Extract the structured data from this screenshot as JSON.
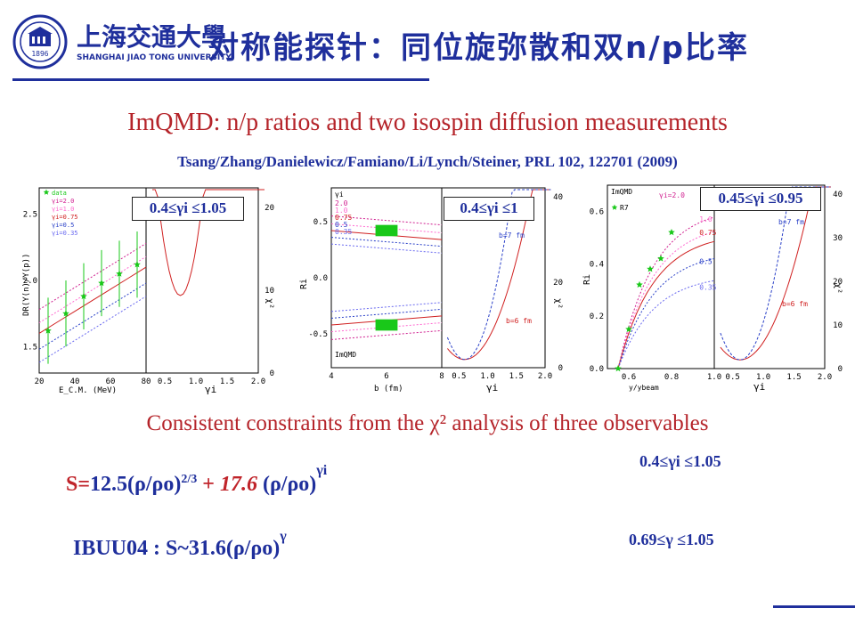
{
  "header": {
    "logo_cn": "上海交通大學",
    "logo_en": "SHANGHAI JIAO TONG UNIVERSITY",
    "seal_year": "1896",
    "title_cn": "对称能探针：同位旋弥散和双n/p比率"
  },
  "subtitle": "ImQMD: n/p ratios and two isospin diffusion measurements",
  "citation": "Tsang/Zhang/Danielewicz/Famiano/Li/Lynch/Steiner, PRL 102, 122701 (2009)",
  "colors": {
    "title_blue": "#1f2f9c",
    "accent_red": "#b5242a",
    "marker_green": "#19c819"
  },
  "panels": {
    "p1": {
      "range_label": "0.4≤γi ≤1.05",
      "legend": [
        "data",
        "γi=2.0",
        "γi=1.0",
        "γi=0.75",
        "γi=0.5",
        "γi=0.35"
      ],
      "ylabel": "DR(Y(n)/Y(p))",
      "xlabel": "E_C.M. (MeV)",
      "xticks": [
        "20",
        "40",
        "60",
        "80"
      ],
      "yticks": [
        "1.5",
        "2.0",
        "2.5"
      ],
      "xlabel2": "γi",
      "xticks2": [
        "0.5",
        "1.0",
        "1.5",
        "2.0"
      ],
      "chi_label": "χ²",
      "chi_ticks": [
        "0",
        "10",
        "20"
      ]
    },
    "p2": {
      "range_label": "0.4≤γi ≤1",
      "legend_head": "γi",
      "legend": [
        "2.0",
        "1.0",
        "0.75",
        "0.5",
        "0.35"
      ],
      "ylabel": "Ri",
      "xlabel": "b (fm)",
      "xticks": [
        "4",
        "6",
        "8"
      ],
      "yticks": [
        "-0.5",
        "0.0",
        "0.5"
      ],
      "model": "ImQMD",
      "xlabel2": "γi",
      "xticks2": [
        "0.5",
        "1.0",
        "1.5",
        "2.0"
      ],
      "chi_label": "χ²",
      "chi_ticks": [
        "0",
        "20",
        "40"
      ],
      "b7": "b=7 fm",
      "b6": "b=6 fm"
    },
    "p3": {
      "range_label": "0.45≤γi ≤0.95",
      "model": "ImQMD",
      "legend_head": "γi=2.0",
      "legend_r": "R7",
      "curve_labels": [
        "1.0",
        "0.75",
        "0.5",
        "0.35"
      ],
      "ylabel": "Ri",
      "xlabel": "y/ybeam",
      "xticks": [
        "0.6",
        "0.8",
        "1.0"
      ],
      "yticks": [
        "0.0",
        "0.2",
        "0.4",
        "0.6"
      ],
      "xlabel2": "γi",
      "xticks2": [
        "0.5",
        "1.0",
        "1.5",
        "2.0"
      ],
      "chi_label": "χ²",
      "chi_ticks": [
        "0",
        "10",
        "20",
        "30",
        "40"
      ],
      "b7": "b=7 fm",
      "b6": "b=6 fm"
    }
  },
  "consistent_text": "Consistent constraints from the χ² analysis of three observables",
  "formula1": {
    "S": "S=",
    "a": "12.5(ρ/ρo)",
    "exp1": "2/3",
    "plus": " + ",
    "b": "17.6",
    "c": " (ρ/ρo)",
    "exp2": "γi"
  },
  "range1": "0.4≤γi ≤1.05",
  "formula2": {
    "a": "IBUU04 : S~",
    "b": "31.6(ρ/ρo)",
    "exp": "γ"
  },
  "range2": "0.69≤γ ≤1.05",
  "chart_data": [
    {
      "type": "scatter",
      "xlabel": "E_C.M. (MeV)",
      "ylabel": "DR(Y(n)/Y(p))",
      "xlim": [
        20,
        80
      ],
      "ylim": [
        1.3,
        2.7
      ],
      "series": [
        {
          "name": "data",
          "x": [
            25,
            35,
            45,
            55,
            65,
            75
          ],
          "y": [
            1.62,
            1.75,
            1.88,
            1.98,
            2.05,
            2.12
          ]
        }
      ]
    },
    {
      "type": "line",
      "xlabel": "b (fm)",
      "ylabel": "Ri",
      "xlim": [
        4,
        8
      ],
      "ylim": [
        -0.8,
        0.8
      ],
      "series": []
    },
    {
      "type": "scatter",
      "xlabel": "y/ybeam",
      "ylabel": "Ri",
      "xlim": [
        0.5,
        1.0
      ],
      "ylim": [
        0.0,
        0.7
      ],
      "series": [
        {
          "name": "R7",
          "x": [
            0.55,
            0.6,
            0.65,
            0.7,
            0.75,
            0.8
          ],
          "y": [
            0.0,
            0.15,
            0.32,
            0.38,
            0.42,
            0.52
          ]
        }
      ]
    }
  ]
}
